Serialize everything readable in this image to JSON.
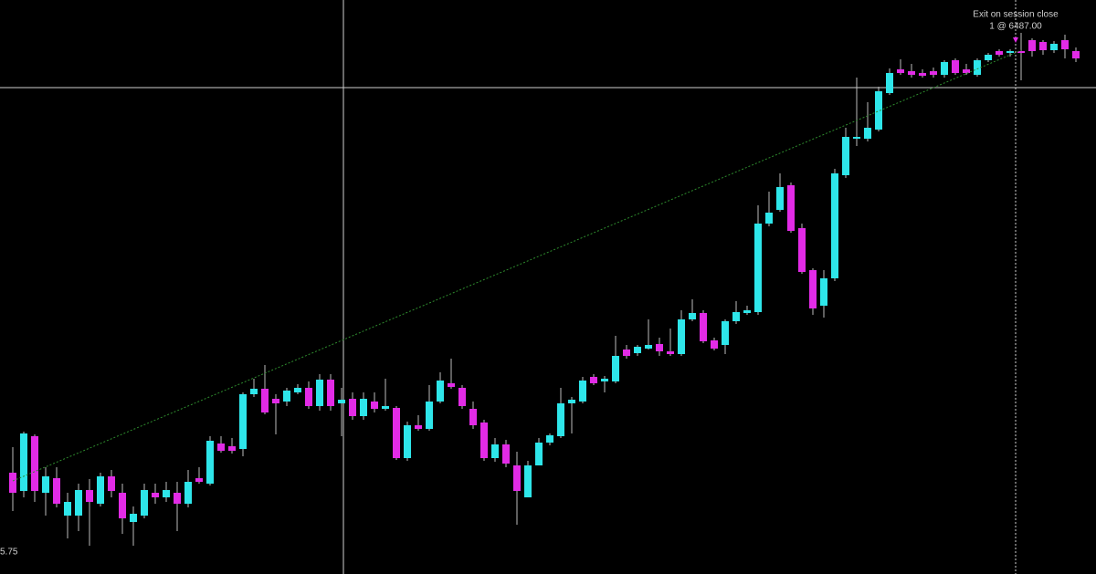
{
  "chart_data": {
    "type": "candlestick",
    "up_color": "#2ee6ea",
    "down_color": "#e22be6",
    "ylim": [
      6343.5,
      6500.75
    ],
    "open": [
      6371.25,
      6366.25,
      6381.25,
      6365.75,
      6369.75,
      6359.5,
      6359.5,
      6366.5,
      6362.75,
      6370.25,
      6365.75,
      6357.75,
      6359.5,
      6365.75,
      6364.5,
      6365.75,
      6362.75,
      6369.75,
      6368.25,
      6379.25,
      6378.5,
      6377.75,
      6392.75,
      6394.25,
      6391.5,
      6390.75,
      6393.25,
      6394.5,
      6389.5,
      6396.75,
      6390.25,
      6391.5,
      6386.75,
      6390.75,
      6388.75,
      6389.0,
      6375.25,
      6384.25,
      6383.25,
      6390.75,
      6395.75,
      6394.5,
      6388.75,
      6385.0,
      6375.25,
      6379.0,
      6373.25,
      6364.5,
      6373.25,
      6379.5,
      6381.25,
      6390.25,
      6390.75,
      6397.5,
      6396.25,
      6396.25,
      6405.0,
      6404.0,
      6405.25,
      6406.5,
      6404.5,
      6403.75,
      6413.25,
      6415.0,
      6407.5,
      6406.25,
      6412.75,
      6415.0,
      6415.25,
      6439.5,
      6443.25,
      6450.0,
      6438.25,
      6426.75,
      6417.0,
      6424.5,
      6452.75,
      6462.75,
      6462.75,
      6465.25,
      6475.25,
      6481.75,
      6481.25,
      6480.75,
      6481.25,
      6480.25,
      6484.25,
      6481.75,
      6480.25,
      6484.25,
      6486.75,
      6486.25,
      6486.75,
      6489.75,
      6489.25,
      6487.0,
      6489.75,
      6486.75
    ],
    "high": [
      6378.25,
      6382.5,
      6381.75,
      6372.75,
      6372.75,
      6365.75,
      6368.25,
      6369.5,
      6371.25,
      6372.0,
      6368.25,
      6362.0,
      6368.25,
      6368.25,
      6368.75,
      6368.75,
      6372.0,
      6372.75,
      6381.25,
      6381.25,
      6380.75,
      6393.25,
      6397.0,
      6400.75,
      6392.75,
      6394.5,
      6395.5,
      6396.25,
      6398.25,
      6398.25,
      6394.5,
      6393.25,
      6393.25,
      6393.25,
      6397.0,
      6389.5,
      6385.25,
      6387.0,
      6395.25,
      6398.75,
      6402.5,
      6395.25,
      6390.75,
      6385.75,
      6380.75,
      6380.25,
      6377.0,
      6374.5,
      6380.75,
      6382.0,
      6394.5,
      6392.0,
      6397.5,
      6398.25,
      6397.75,
      6408.75,
      6406.25,
      6406.25,
      6413.25,
      6408.25,
      6410.75,
      6415.75,
      6418.75,
      6415.75,
      6408.25,
      6413.25,
      6418.25,
      6417.0,
      6444.5,
      6448.25,
      6453.25,
      6450.75,
      6439.5,
      6427.25,
      6426.75,
      6454.5,
      6465.75,
      6479.5,
      6472.75,
      6477.0,
      6482.0,
      6484.5,
      6483.25,
      6481.75,
      6482.25,
      6484.25,
      6484.75,
      6483.25,
      6484.75,
      6486.25,
      6487.25,
      6487.25,
      6491.75,
      6490.25,
      6489.75,
      6489.5,
      6491.25,
      6487.75
    ],
    "low": [
      6360.75,
      6364.5,
      6363.25,
      6359.5,
      6361.75,
      6353.25,
      6355.25,
      6351.25,
      6362.0,
      6364.5,
      6354.5,
      6351.25,
      6358.75,
      6362.75,
      6363.25,
      6355.25,
      6361.75,
      6368.25,
      6367.75,
      6376.75,
      6376.5,
      6375.75,
      6392.0,
      6387.25,
      6381.75,
      6389.5,
      6392.75,
      6388.75,
      6388.25,
      6388.25,
      6381.25,
      6385.75,
      6385.75,
      6387.75,
      6388.25,
      6374.75,
      6374.5,
      6382.75,
      6382.75,
      6390.25,
      6394.25,
      6388.75,
      6383.25,
      6374.5,
      6374.25,
      6372.75,
      6357.0,
      6364.5,
      6373.25,
      6378.75,
      6380.75,
      6382.0,
      6390.25,
      6395.25,
      6393.25,
      6395.75,
      6402.5,
      6403.25,
      6405.0,
      6403.25,
      6403.25,
      6403.25,
      6412.75,
      6406.75,
      6404.75,
      6403.75,
      6412.0,
      6414.5,
      6414.5,
      6438.75,
      6442.75,
      6437.0,
      6425.75,
      6414.5,
      6413.75,
      6423.75,
      6452.0,
      6460.75,
      6462.0,
      6464.75,
      6474.75,
      6480.25,
      6479.5,
      6479.5,
      6479.5,
      6479.5,
      6480.25,
      6480.25,
      6479.75,
      6483.75,
      6485.25,
      6485.25,
      6478.75,
      6485.25,
      6485.75,
      6486.25,
      6484.75,
      6483.75
    ],
    "close": [
      6365.75,
      6382.0,
      6366.25,
      6370.25,
      6362.75,
      6363.25,
      6366.5,
      6363.25,
      6370.25,
      6366.25,
      6358.75,
      6360.0,
      6366.5,
      6364.5,
      6366.5,
      6362.75,
      6368.75,
      6368.75,
      6380.0,
      6377.25,
      6377.25,
      6392.75,
      6394.25,
      6387.75,
      6390.25,
      6393.75,
      6394.5,
      6389.5,
      6396.75,
      6389.5,
      6391.25,
      6386.75,
      6391.5,
      6388.75,
      6389.5,
      6375.25,
      6384.25,
      6383.25,
      6390.75,
      6396.5,
      6394.75,
      6389.5,
      6384.25,
      6375.25,
      6379.0,
      6373.75,
      6366.25,
      6373.25,
      6379.5,
      6381.5,
      6390.25,
      6391.25,
      6396.5,
      6395.75,
      6397.0,
      6403.25,
      6403.25,
      6405.75,
      6406.25,
      6404.5,
      6403.75,
      6413.25,
      6415.0,
      6407.25,
      6405.25,
      6412.75,
      6415.25,
      6415.75,
      6439.5,
      6442.5,
      6449.5,
      6437.5,
      6426.25,
      6416.25,
      6424.5,
      6453.25,
      6463.25,
      6463.25,
      6465.75,
      6475.75,
      6480.75,
      6480.75,
      6480.25,
      6480.0,
      6480.25,
      6483.75,
      6480.75,
      6480.75,
      6484.25,
      6485.75,
      6485.75,
      6486.75,
      6486.25,
      6486.75,
      6487.0,
      6488.75,
      6487.25,
      6484.75
    ],
    "trade": {
      "entry_index": 0,
      "entry_price": 6369.0,
      "exit_index": 92,
      "exit_price": 6487,
      "exit_text": "Exit on session close",
      "exit_label": "1 @ 6487.00"
    },
    "corner_label": "5.75"
  }
}
